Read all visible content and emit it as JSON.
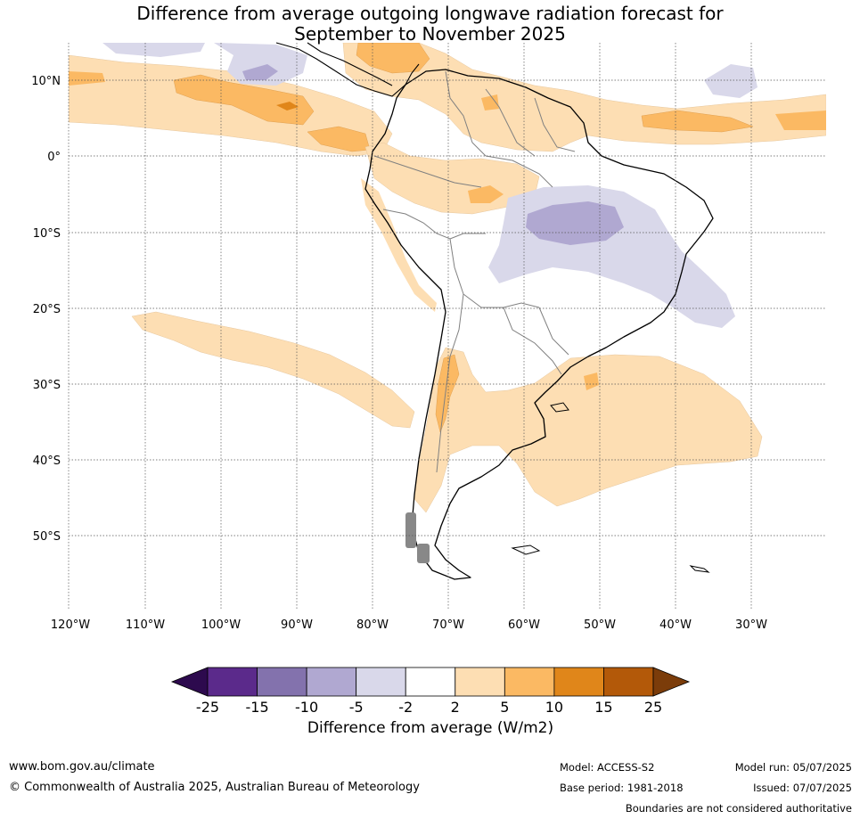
{
  "title_line1": "Difference from average outgoing longwave radiation forecast for",
  "title_line2": "September to November 2025",
  "lat_labels": [
    "10°N",
    "0°",
    "10°S",
    "20°S",
    "30°S",
    "40°S",
    "50°S"
  ],
  "lon_labels": [
    "120°W",
    "110°W",
    "100°W",
    "90°W",
    "80°W",
    "70°W",
    "60°W",
    "50°W",
    "40°W",
    "30°W"
  ],
  "colorbar": {
    "title": "Difference from average (W/m2)",
    "ticks": [
      "-25",
      "-15",
      "-10",
      "-5",
      "-2",
      "2",
      "5",
      "10",
      "15",
      "25"
    ],
    "colors": [
      "#2d0a4e",
      "#5b2a8b",
      "#8372ad",
      "#b0a8d1",
      "#d9d8ea",
      "#ffffff",
      "#fddeb3",
      "#fbb963",
      "#e0861a",
      "#b35909",
      "#7b3c0a"
    ]
  },
  "footer": {
    "url": "www.bom.gov.au/climate",
    "copyright": "© Commonwealth of Australia 2025, Australian Bureau of Meteorology",
    "model": "Model: ACCESS-S2",
    "base_period": "Base period: 1981-2018",
    "model_run": "Model run: 05/07/2025",
    "issued": "Issued: 07/07/2025",
    "disclaimer": "Boundaries are not considered authoritative"
  }
}
